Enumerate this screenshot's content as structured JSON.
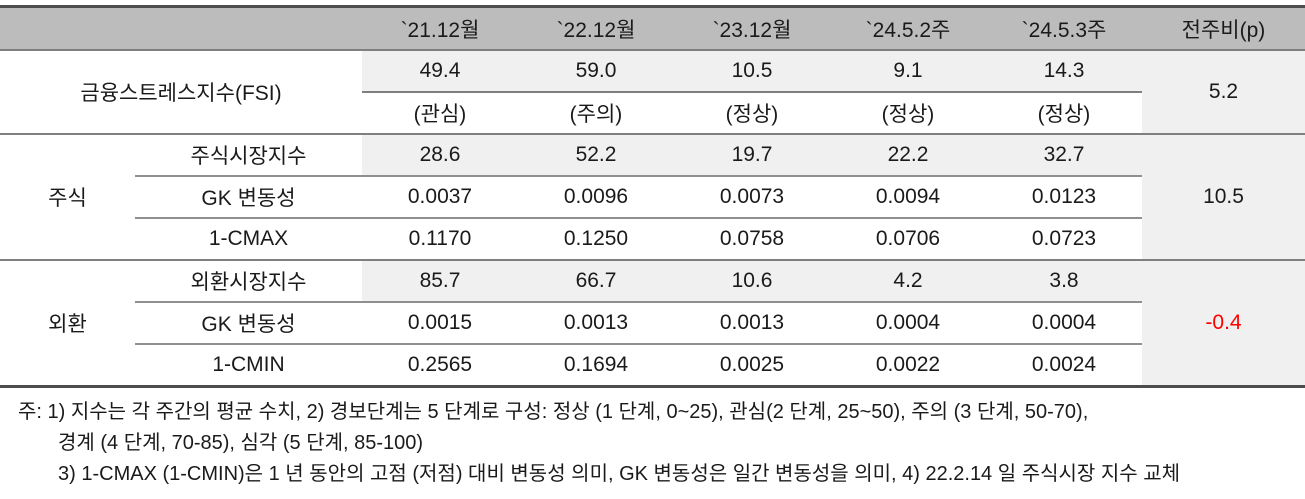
{
  "colors": {
    "header-bg": "#bcbcbc",
    "cell-shade": "#f0f0f0",
    "border-strong": "#4d4d4d",
    "line-mid": "#7f7f7f",
    "line-sub": "#8f8f8f",
    "text": "#1a1a1a",
    "negative": "#fe0000"
  },
  "table": {
    "columns": [
      "`21.12월",
      "`22.12월",
      "`23.12월",
      "`24.5.2주",
      "`24.5.3주",
      "전주비(p)"
    ],
    "fsi": {
      "label": "금융스트레스지수(FSI)",
      "values": [
        "49.4",
        "59.0",
        "10.5",
        "9.1",
        "14.3"
      ],
      "statuses": [
        "(관심)",
        "(주의)",
        "(정상)",
        "(정상)",
        "(정상)"
      ],
      "wow": "5.2"
    },
    "stock": {
      "group_label": "주식",
      "wow": "10.5",
      "rows": [
        {
          "label": "주식시장지수",
          "values": [
            "28.6",
            "52.2",
            "19.7",
            "22.2",
            "32.7"
          ]
        },
        {
          "label": "GK 변동성",
          "values": [
            "0.0037",
            "0.0096",
            "0.0073",
            "0.0094",
            "0.0123"
          ]
        },
        {
          "label": "1-CMAX",
          "values": [
            "0.1170",
            "0.1250",
            "0.0758",
            "0.0706",
            "0.0723"
          ]
        }
      ]
    },
    "fx": {
      "group_label": "외환",
      "wow": "-0.4",
      "rows": [
        {
          "label": "외환시장지수",
          "values": [
            "85.7",
            "66.7",
            "10.6",
            "4.2",
            "3.8"
          ]
        },
        {
          "label": "GK 변동성",
          "values": [
            "0.0015",
            "0.0013",
            "0.0013",
            "0.0004",
            "0.0004"
          ]
        },
        {
          "label": "1-CMIN",
          "values": [
            "0.2565",
            "0.1694",
            "0.0025",
            "0.0022",
            "0.0024"
          ]
        }
      ]
    }
  },
  "notes": {
    "lines": [
      "주: 1) 지수는 각 주간의 평균 수치, 2) 경보단계는 5 단계로 구성: 정상 (1 단계, 0~25), 관심(2 단계, 25~50), 주의 (3 단계, 50-70),",
      "경계 (4 단계, 70-85), 심각 (5 단계, 85-100)",
      "3) 1-CMAX (1-CMIN)은 1 년 동안의 고점 (저점) 대비 변동성 의미, GK 변동성은 일간 변동성을 의미, 4) 22.2.14 일 주식시장 지수 교체"
    ]
  },
  "chart_data": {
    "type": "table",
    "title": "금융스트레스지수(FSI) 주간 동향",
    "columns": [
      "`21.12월",
      "`22.12월",
      "`23.12월",
      "`24.5.2주",
      "`24.5.3주",
      "전주비(p)"
    ],
    "rows": [
      {
        "group": "",
        "label": "금융스트레스지수(FSI)",
        "values": [
          49.4,
          59.0,
          10.5,
          9.1,
          14.3
        ],
        "statuses": [
          "관심",
          "주의",
          "정상",
          "정상",
          "정상"
        ],
        "wow": 5.2
      },
      {
        "group": "주식",
        "label": "주식시장지수",
        "values": [
          28.6,
          52.2,
          19.7,
          22.2,
          32.7
        ],
        "wow": 10.5
      },
      {
        "group": "주식",
        "label": "GK 변동성",
        "values": [
          0.0037,
          0.0096,
          0.0073,
          0.0094,
          0.0123
        ],
        "wow": 10.5
      },
      {
        "group": "주식",
        "label": "1-CMAX",
        "values": [
          0.117,
          0.125,
          0.0758,
          0.0706,
          0.0723
        ],
        "wow": 10.5
      },
      {
        "group": "외환",
        "label": "외환시장지수",
        "values": [
          85.7,
          66.7,
          10.6,
          4.2,
          3.8
        ],
        "wow": -0.4
      },
      {
        "group": "외환",
        "label": "GK 변동성",
        "values": [
          0.0015,
          0.0013,
          0.0013,
          0.0004,
          0.0004
        ],
        "wow": -0.4
      },
      {
        "group": "외환",
        "label": "1-CMIN",
        "values": [
          0.2565,
          0.1694,
          0.0025,
          0.0022,
          0.0024
        ],
        "wow": -0.4
      }
    ]
  }
}
